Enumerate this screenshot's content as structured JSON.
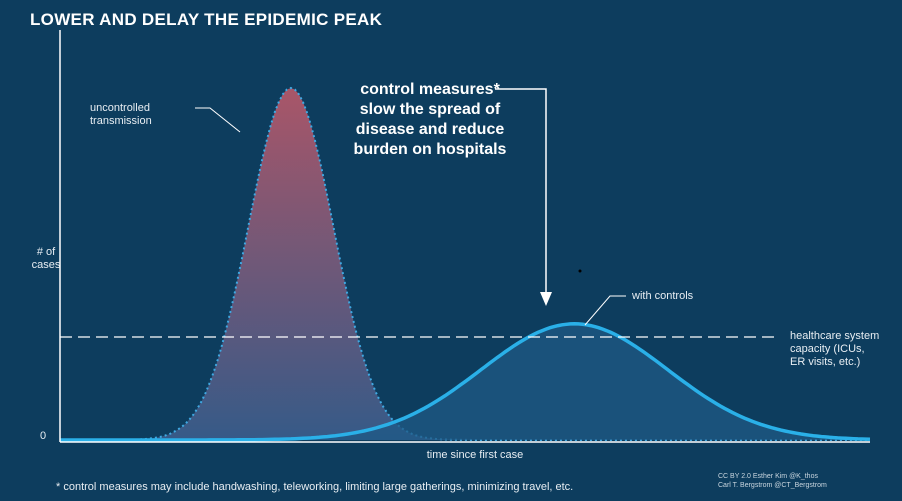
{
  "chart_data": {
    "type": "area",
    "title": "LOWER AND DELAY THE EPIDEMIC PEAK",
    "ylabel": "# of\ncases",
    "xlabel": "time since first case",
    "y_zero_label": "0",
    "series": [
      {
        "name": "uncontrolled transmission",
        "label": "uncontrolled\ntransmission",
        "peak_x": 0.285,
        "peak_y": 1.0,
        "width": 0.105,
        "color": "#3fa9e3",
        "fill_top": "#c45a6a",
        "fill_bottom": "#3d5f8f"
      },
      {
        "name": "with controls",
        "label": "with controls",
        "peak_x": 0.635,
        "peak_y": 0.33,
        "width": 0.23,
        "color": "#2ab0e8",
        "fill": "#1f5a86"
      }
    ],
    "capacity_line": {
      "label": "healthcare system\ncapacity (ICUs,\nER visits, etc.)",
      "y": 0.3
    },
    "annotation": "control measures*\nslow the spread of\ndisease and reduce\nburden on hospitals",
    "footnote": "* control measures may include handwashing, teleworking, limiting large gatherings, minimizing travel, etc.",
    "credit": "CC BY 2.0  Esther Kim  @K_thos\nCarl T. Bergstrom  @CT_Bergstrom",
    "background": "#0d3d5e"
  }
}
